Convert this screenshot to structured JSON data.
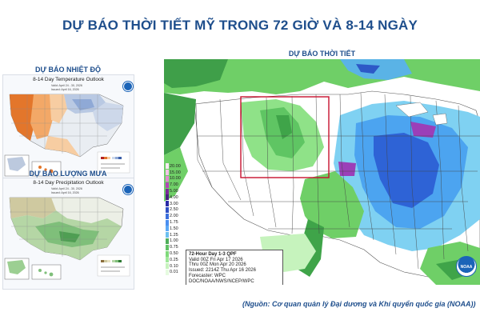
{
  "main_title": "DỰ BÁO THỜI TIẾT MỸ TRONG 72 GIỜ VÀ 8-14 NGÀY",
  "left": {
    "temperature": {
      "panel_title": "DỰ BÁO NHIỆT ĐỘ",
      "map_title": "8-14 Day Temperature Outlook",
      "valid": "Valid: April 24 - 30, 2026",
      "issued": "Issued: April 16, 2026"
    },
    "precipitation": {
      "panel_title": "DỰ BÁO LƯỢNG MƯA",
      "map_title": "8-14 Day Precipitation Outlook",
      "valid": "Valid: April 24 - 30, 2026",
      "issued": "Issued: April 16, 2026"
    }
  },
  "right": {
    "panel_title": "DỰ BÁO THỜI TIẾT",
    "legend": [
      "20.00",
      "15.00",
      "10.00",
      "7.00",
      "5.00",
      "4.00",
      "3.00",
      "2.50",
      "2.00",
      "1.75",
      "1.50",
      "1.25",
      "1.00",
      "0.75",
      "0.50",
      "0.25",
      "0.10",
      "0.01"
    ],
    "legend_colors": [
      "#fde8f4",
      "#f3c4e6",
      "#e08ad0",
      "#b347b6",
      "#7c2a98",
      "#4b2180",
      "#2a2aa6",
      "#2f4fc4",
      "#3a6edc",
      "#4b8ff0",
      "#5aa8f6",
      "#6cc0f0",
      "#4fae5a",
      "#60c265",
      "#7fd97a",
      "#a0e89a",
      "#c6f3bd",
      "#e6fbe0"
    ],
    "info": {
      "line1": "72-Hour Day 1-3 QPF",
      "line2": "Valid 00Z Fri Apr 17 2026",
      "line3": "Thru 00Z Mon Apr 20 2026",
      "line4": "Issued: 2214Z Thu Apr 16 2026",
      "line5": "Forecaster: WPC",
      "line6": "DOC/NOAA/NWS/NCEP/WPC"
    },
    "logo_text": "NOAA"
  },
  "source": "(Nguồn: Cơ quan quản lý Đại dương và Khí quyển quốc gia (NOAA))",
  "colors": {
    "title_blue": "#1e4e8c",
    "highlight_box": "#c8102e"
  }
}
